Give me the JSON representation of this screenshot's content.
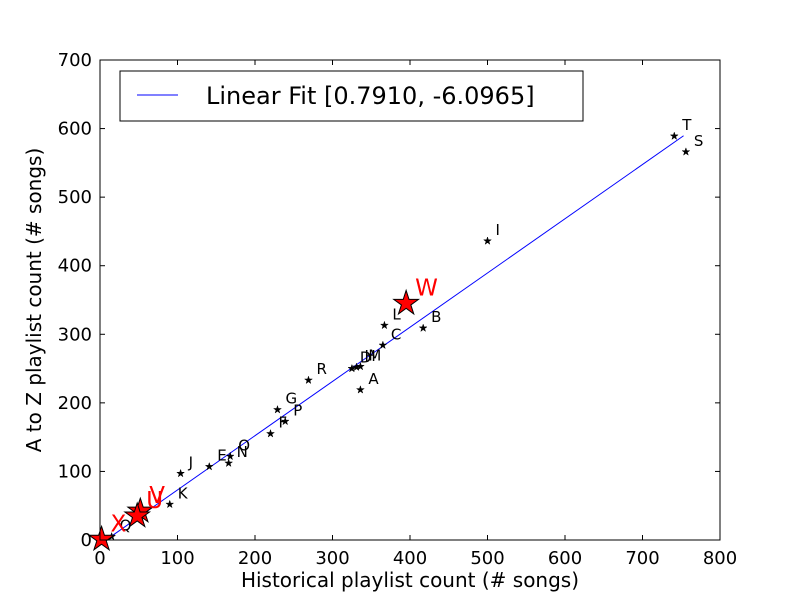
{
  "chart_data": {
    "type": "scatter",
    "xlabel": "Historical playlist count (# songs)",
    "ylabel": "A to Z playlist count (# songs)",
    "xlim": [
      0,
      800
    ],
    "ylim": [
      0,
      700
    ],
    "xticks": [
      "0",
      "100",
      "200",
      "300",
      "400",
      "500",
      "600",
      "700",
      "800"
    ],
    "yticks": [
      "0",
      "100",
      "200",
      "300",
      "400",
      "500",
      "600",
      "700"
    ],
    "grid": false,
    "legend_placement": "top-left",
    "fit": {
      "label": "Linear Fit [0.7910, -6.0965]",
      "slope": 0.791,
      "intercept": -6.0965,
      "x_range": [
        15,
        753
      ],
      "color": "#0000ff"
    },
    "points": [
      {
        "label": "A",
        "x": 336,
        "y": 219
      },
      {
        "label": "B",
        "x": 417,
        "y": 309
      },
      {
        "label": "C",
        "x": 365,
        "y": 284
      },
      {
        "label": "D",
        "x": 325,
        "y": 250
      },
      {
        "label": "E",
        "x": 141,
        "y": 107
      },
      {
        "label": "F",
        "x": 220,
        "y": 155
      },
      {
        "label": "G",
        "x": 229,
        "y": 190
      },
      {
        "label": "H",
        "x": 331,
        "y": 252
      },
      {
        "label": "I",
        "x": 500,
        "y": 436
      },
      {
        "label": "J",
        "x": 104,
        "y": 97
      },
      {
        "label": "K",
        "x": 90,
        "y": 52
      },
      {
        "label": "L",
        "x": 367,
        "y": 313
      },
      {
        "label": "M",
        "x": 336,
        "y": 253
      },
      {
        "label": "N",
        "x": 166,
        "y": 112
      },
      {
        "label": "O",
        "x": 168,
        "y": 122
      },
      {
        "label": "P",
        "x": 239,
        "y": 173
      },
      {
        "label": "Q",
        "x": 15,
        "y": 5
      },
      {
        "label": "R",
        "x": 269,
        "y": 233
      },
      {
        "label": "S",
        "x": 756,
        "y": 566
      },
      {
        "label": "T",
        "x": 741,
        "y": 589
      }
    ],
    "highlighted_points": [
      {
        "label": "W",
        "x": 395,
        "y": 345
      },
      {
        "label": "V",
        "x": 52,
        "y": 42
      },
      {
        "label": "U",
        "x": 48,
        "y": 35
      },
      {
        "label": "X",
        "x": 2,
        "y": 1
      }
    ],
    "colors": {
      "points": "#000000",
      "highlight_fill": "#ff0000",
      "highlight_label": "#ff0000",
      "fit_line": "#0000ff"
    }
  }
}
